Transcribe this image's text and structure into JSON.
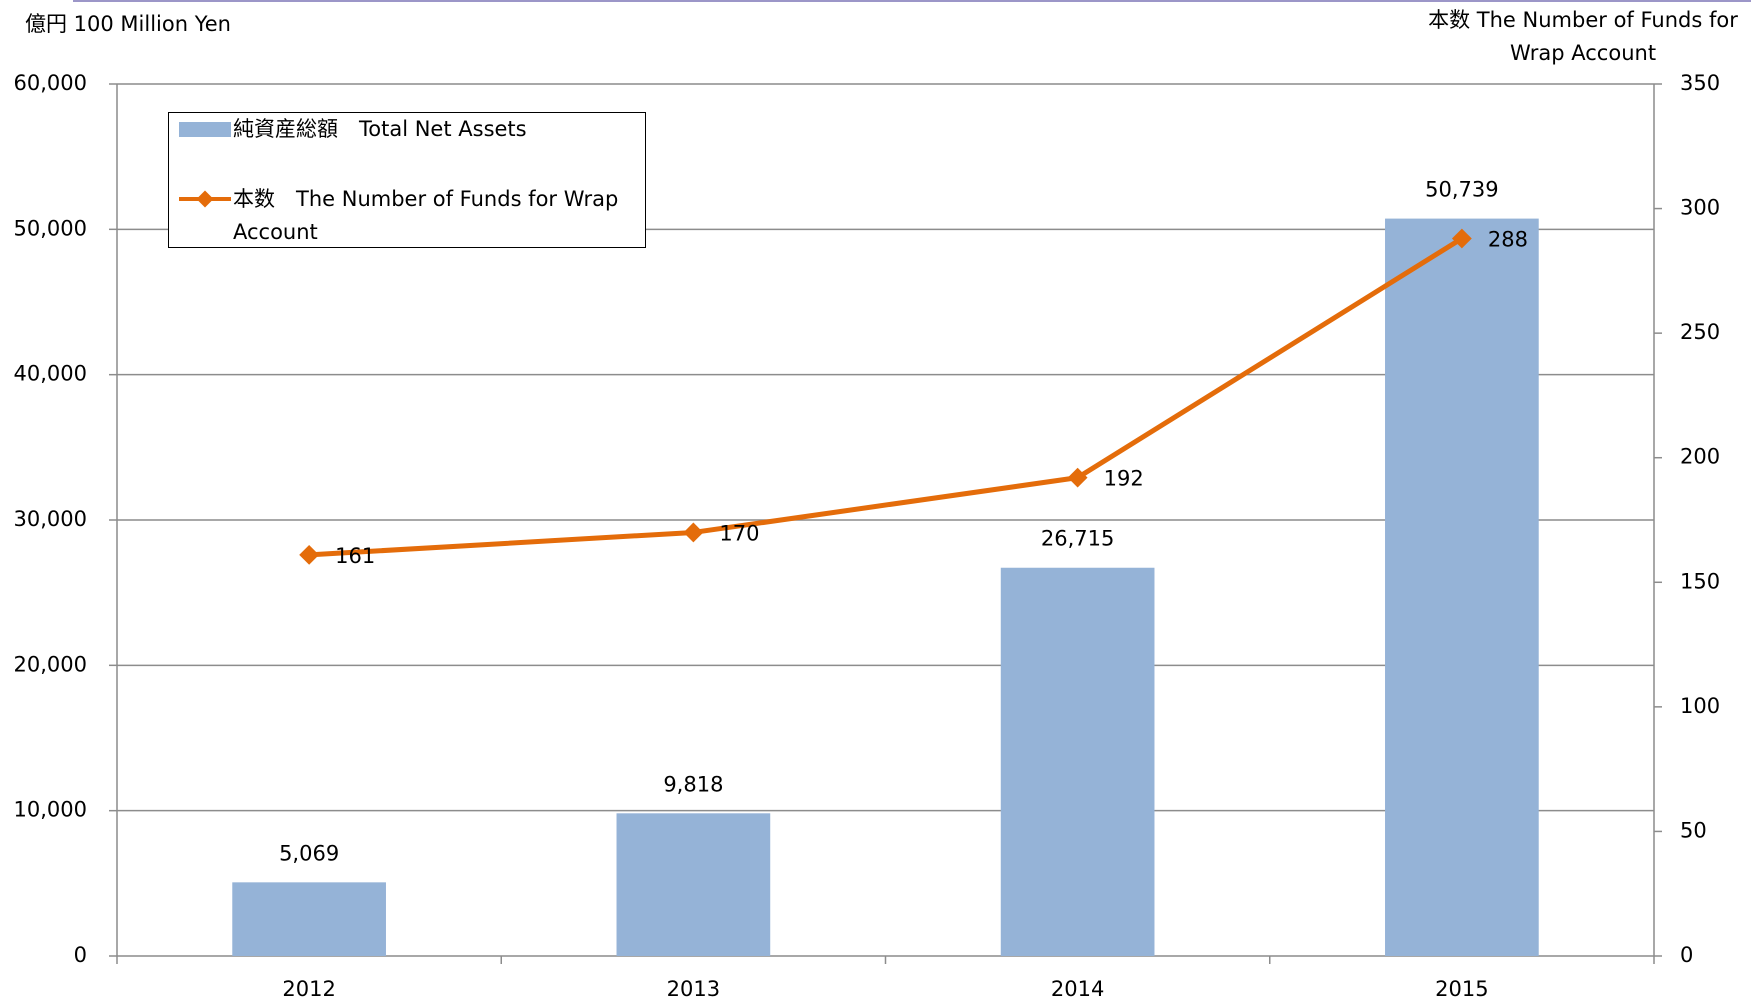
{
  "chart_data": {
    "type": "bar_line",
    "ylabel": "億円 100 Million Yen",
    "y2label": "本数 The Number of Funds for Wrap Account",
    "categories": [
      "2012",
      "2013",
      "2014",
      "2015"
    ],
    "series": [
      {
        "name": "純資産総額　Total Net Assets",
        "type": "bar",
        "color": "#95b3d7",
        "values": [
          5069,
          9818,
          26715,
          50739
        ],
        "value_labels": [
          "5,069",
          "9,818",
          "26,715",
          "50,739"
        ]
      },
      {
        "name": "本数　The Number of Funds for Wrap Account",
        "type": "line",
        "axis": "y2",
        "color": "#e46c0a",
        "values": [
          161,
          170,
          192,
          288
        ]
      }
    ],
    "ylim": [
      0,
      60000
    ],
    "yticks": [
      0,
      {
        "value": 10000,
        "label": "10,000"
      },
      {
        "value": 20000,
        "label": "20,000"
      },
      {
        "value": 30000,
        "label": "30,000"
      },
      {
        "value": 40000,
        "label": "40,000"
      },
      {
        "value": 50000,
        "label": "50,000"
      },
      {
        "value": 60000,
        "label": "60,000"
      }
    ],
    "y2lim": [
      0,
      350
    ],
    "y2ticks": [
      0,
      50,
      100,
      150,
      200,
      250,
      300,
      350
    ],
    "grid": true,
    "legend": "top-left"
  }
}
